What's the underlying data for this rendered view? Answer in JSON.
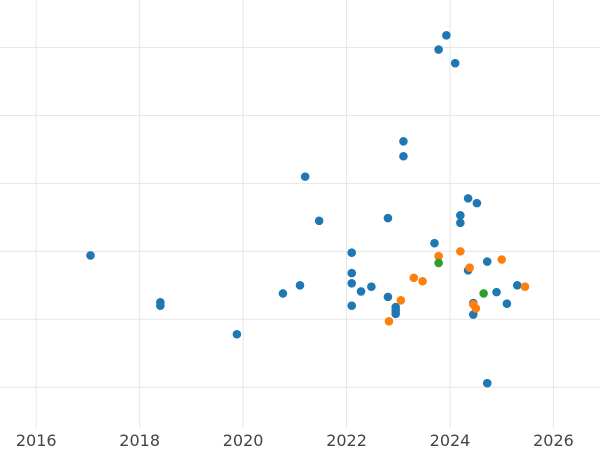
{
  "chart_data": {
    "type": "scatter",
    "title": "",
    "xlabel": "",
    "ylabel": "",
    "xlim": [
      2015.3,
      2026.9
    ],
    "ylim": [
      -0.6,
      5.7
    ],
    "x_ticks": [
      2016,
      2018,
      2020,
      2022,
      2024,
      2026
    ],
    "x_tick_labels": [
      "2016",
      "2018",
      "2020",
      "2022",
      "2024",
      "2026"
    ],
    "y_gridlines": [
      0,
      1,
      2,
      3,
      4,
      5
    ],
    "y_tick_labels_visible": false,
    "grid": true,
    "legend": "none",
    "series": [
      {
        "color": "#1f77b4",
        "points": [
          [
            2017.05,
            1.94
          ],
          [
            2018.4,
            1.25
          ],
          [
            2018.4,
            1.2
          ],
          [
            2019.88,
            0.78
          ],
          [
            2020.77,
            1.38
          ],
          [
            2021.1,
            1.5
          ],
          [
            2021.2,
            3.1
          ],
          [
            2021.47,
            2.45
          ],
          [
            2022.1,
            1.98
          ],
          [
            2022.1,
            1.68
          ],
          [
            2022.1,
            1.53
          ],
          [
            2022.1,
            1.2
          ],
          [
            2022.28,
            1.41
          ],
          [
            2022.48,
            1.48
          ],
          [
            2022.8,
            2.49
          ],
          [
            2022.8,
            1.33
          ],
          [
            2022.95,
            1.18
          ],
          [
            2022.95,
            1.13
          ],
          [
            2022.95,
            1.08
          ],
          [
            2023.1,
            3.62
          ],
          [
            2023.1,
            3.4
          ],
          [
            2023.7,
            2.12
          ],
          [
            2023.78,
            4.97
          ],
          [
            2023.93,
            5.18
          ],
          [
            2024.1,
            4.77
          ],
          [
            2024.2,
            2.53
          ],
          [
            2024.2,
            2.42
          ],
          [
            2024.35,
            2.78
          ],
          [
            2024.35,
            1.72
          ],
          [
            2024.45,
            1.24
          ],
          [
            2024.45,
            1.07
          ],
          [
            2024.52,
            2.71
          ],
          [
            2024.72,
            1.85
          ],
          [
            2024.72,
            0.06
          ],
          [
            2024.9,
            1.4
          ],
          [
            2025.1,
            1.23
          ],
          [
            2025.3,
            1.5
          ]
        ]
      },
      {
        "color": "#ff7f0e",
        "points": [
          [
            2022.82,
            0.97
          ],
          [
            2023.05,
            1.28
          ],
          [
            2023.3,
            1.61
          ],
          [
            2023.47,
            1.56
          ],
          [
            2023.78,
            1.93
          ],
          [
            2024.2,
            2.0
          ],
          [
            2024.38,
            1.76
          ],
          [
            2024.45,
            1.22
          ],
          [
            2024.5,
            1.16
          ],
          [
            2025.0,
            1.88
          ],
          [
            2025.45,
            1.48
          ]
        ]
      },
      {
        "color": "#2ca02c",
        "points": [
          [
            2023.78,
            1.83
          ],
          [
            2024.65,
            1.38
          ]
        ]
      }
    ]
  }
}
